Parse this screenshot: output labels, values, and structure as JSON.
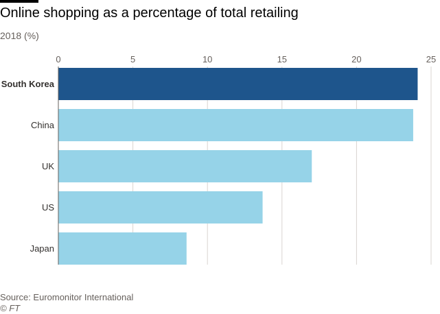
{
  "chart_data": {
    "type": "bar",
    "orientation": "horizontal",
    "title": "Online shopping as a percentage of total retailing",
    "subtitle": "2018 (%)",
    "categories": [
      "South Korea",
      "China",
      "UK",
      "US",
      "Japan"
    ],
    "values": [
      24.1,
      23.8,
      17.0,
      13.7,
      8.6
    ],
    "highlight": "South Korea",
    "xlim": [
      0,
      25
    ],
    "xticks": [
      0,
      5,
      10,
      15,
      20,
      25
    ],
    "xlabel": "",
    "ylabel": "",
    "grid": true
  },
  "footer": {
    "source": "Source: Euromonitor International",
    "credit": "© FT"
  },
  "colors": {
    "highlight_bar": "#1e558c",
    "bar": "#96d3e8",
    "grid": "#d9d4d0"
  }
}
